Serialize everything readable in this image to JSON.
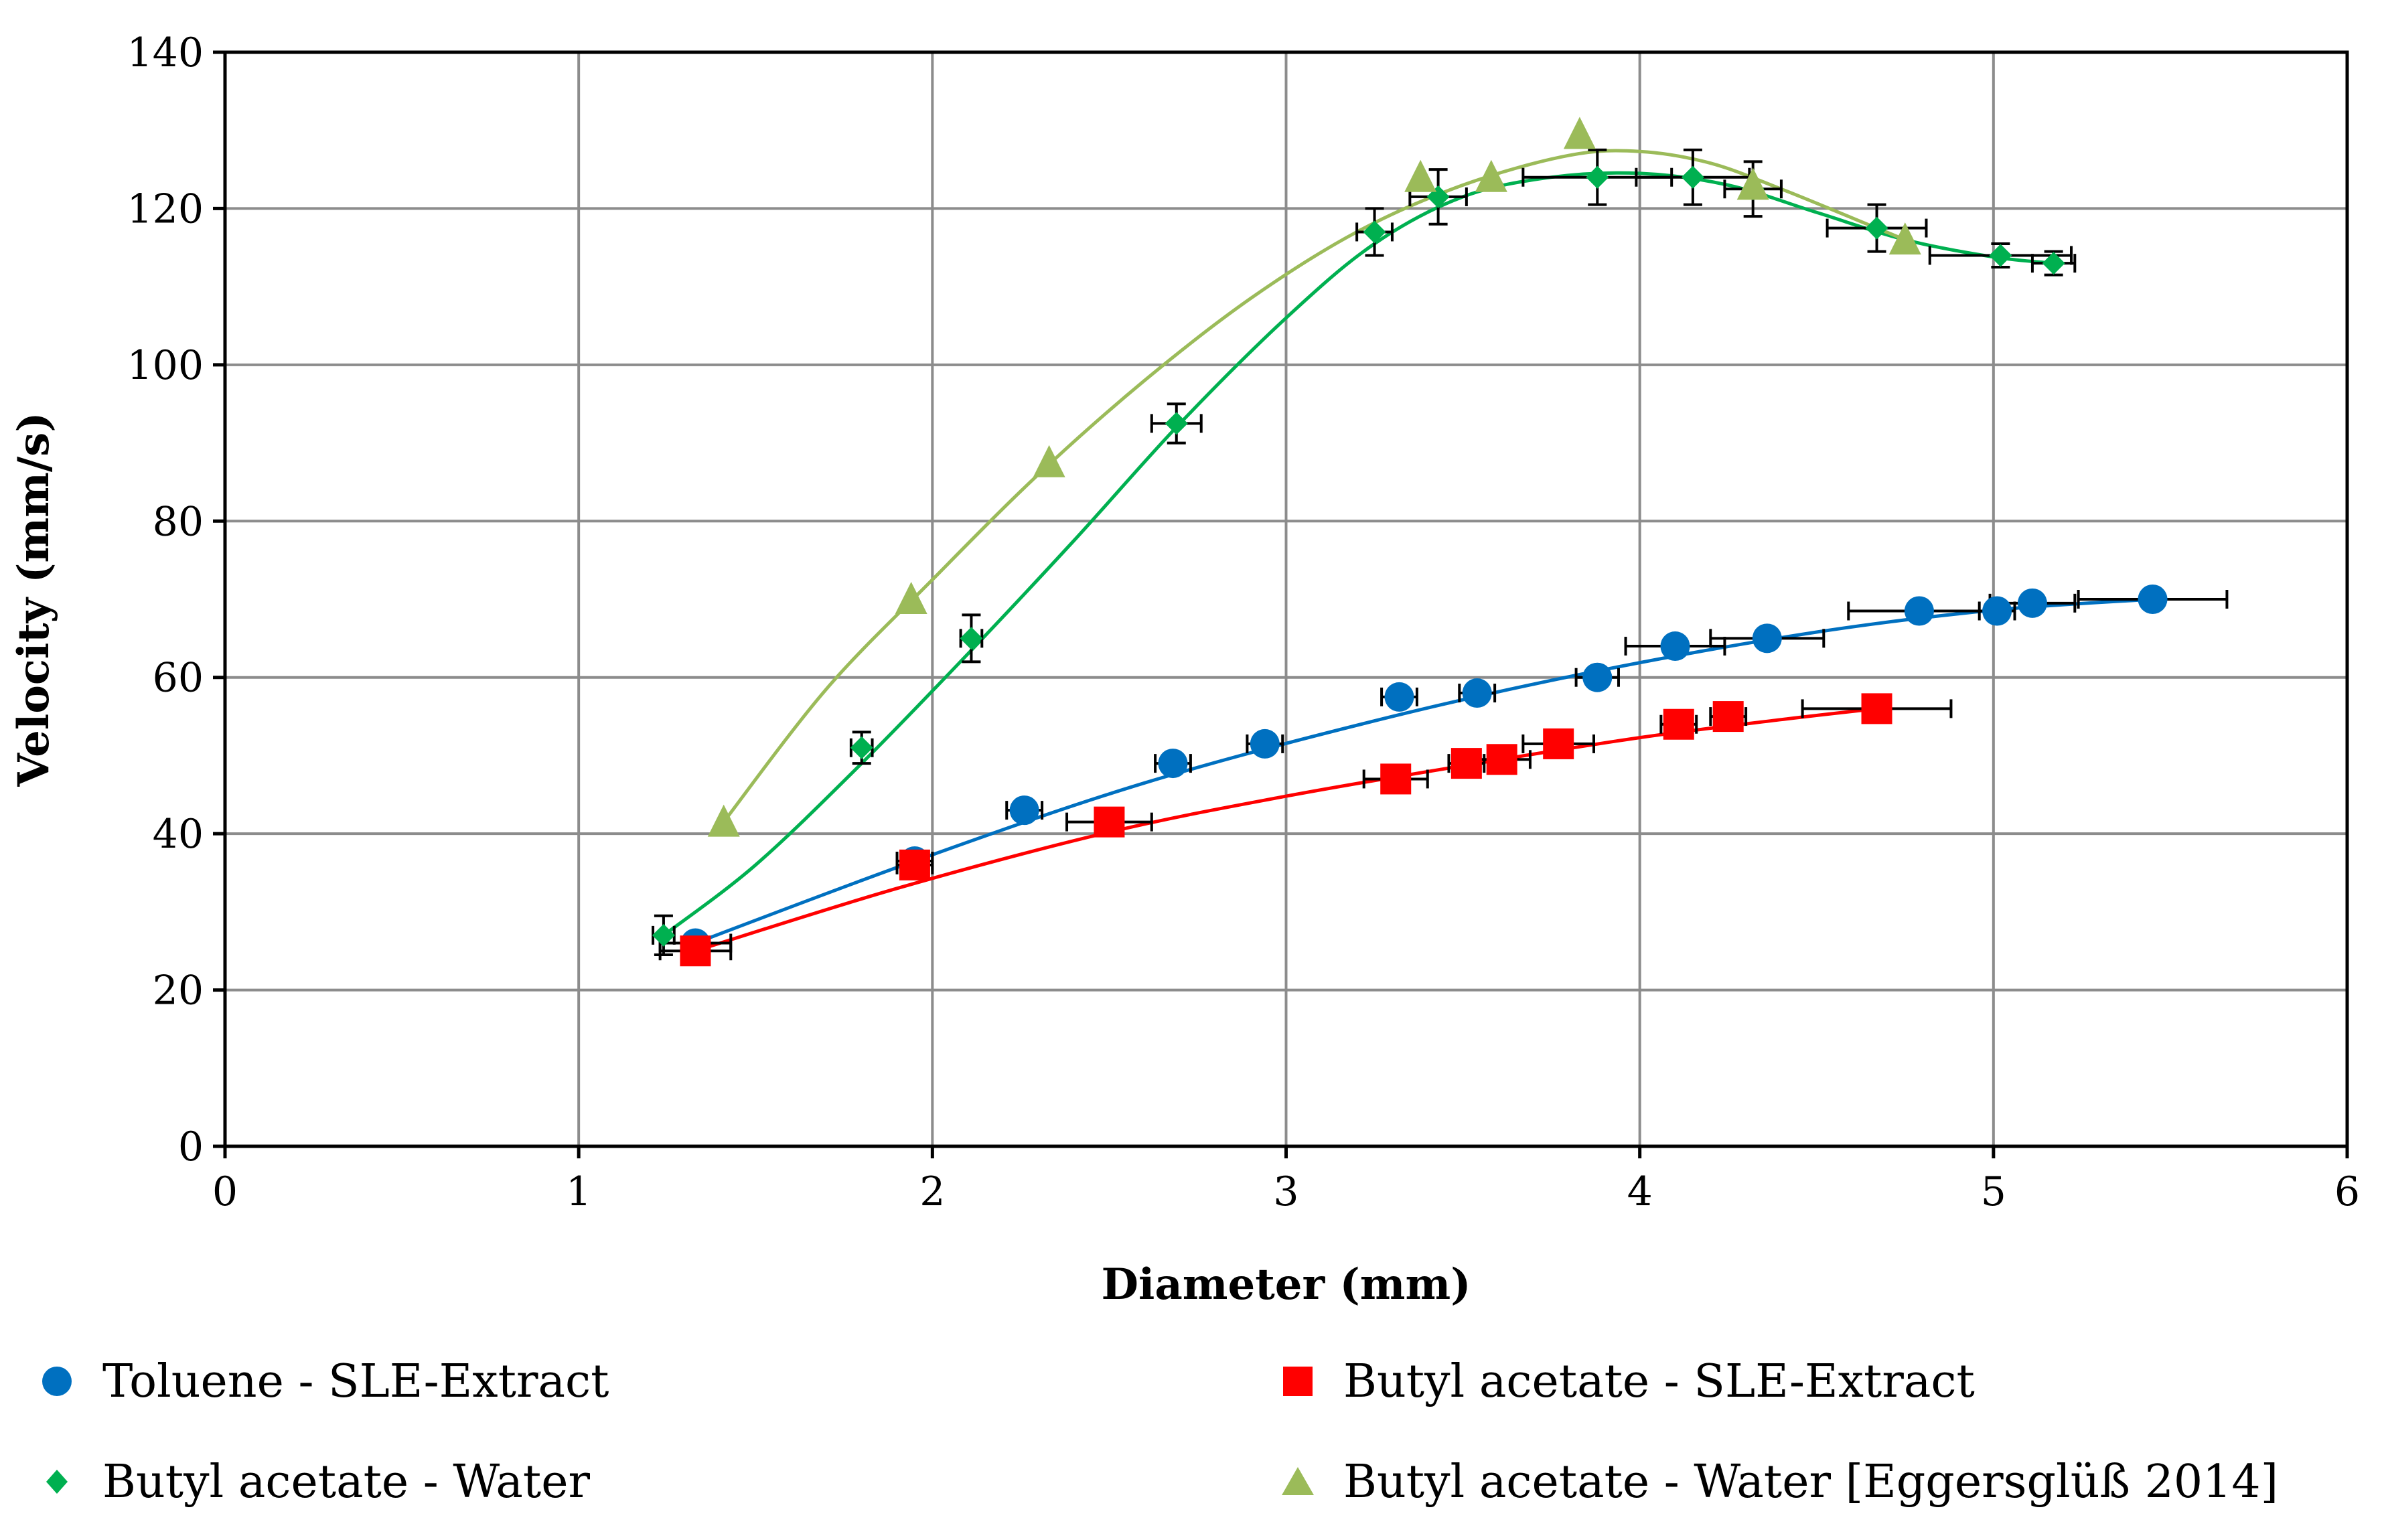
{
  "chart_data": {
    "type": "scatter",
    "xlabel": "Diameter (mm)",
    "ylabel": "Velocity (mm/s)",
    "xlim": [
      0,
      6
    ],
    "ylim": [
      0,
      140
    ],
    "x_ticks": [
      0,
      1,
      2,
      3,
      4,
      5,
      6
    ],
    "y_ticks": [
      0,
      20,
      40,
      60,
      80,
      100,
      120,
      140
    ],
    "x_tick_labels": [
      "0",
      "1",
      "2",
      "3",
      "4",
      "5",
      "6"
    ],
    "y_tick_labels": [
      "0",
      "20",
      "40",
      "60",
      "80",
      "100",
      "120",
      "140"
    ],
    "grid": true,
    "legend_position": "bottom",
    "series": [
      {
        "name": "Toluene - SLE-Extract",
        "marker": "circle",
        "color": "#0070C0",
        "points": [
          {
            "x": 1.33,
            "y": 26.0,
            "xerr": 0.1
          },
          {
            "x": 1.95,
            "y": 36.5,
            "xerr": 0.05
          },
          {
            "x": 2.26,
            "y": 43.0,
            "xerr": 0.05
          },
          {
            "x": 2.68,
            "y": 49.0,
            "xerr": 0.05
          },
          {
            "x": 2.94,
            "y": 51.5,
            "xerr": 0.05
          },
          {
            "x": 3.32,
            "y": 57.5,
            "xerr": 0.05
          },
          {
            "x": 3.54,
            "y": 58.0,
            "xerr": 0.05
          },
          {
            "x": 3.88,
            "y": 60.0,
            "xerr": 0.06
          },
          {
            "x": 4.1,
            "y": 64.0,
            "xerr": 0.14
          },
          {
            "x": 4.36,
            "y": 65.0,
            "xerr": 0.16
          },
          {
            "x": 4.79,
            "y": 68.5,
            "xerr": 0.2
          },
          {
            "x": 5.01,
            "y": 68.5,
            "xerr": 0.05
          },
          {
            "x": 5.11,
            "y": 69.5,
            "xerr": 0.12
          },
          {
            "x": 5.45,
            "y": 70.0,
            "xerr": 0.21
          }
        ],
        "fit": [
          [
            1.33,
            26.0
          ],
          [
            1.95,
            36.5
          ],
          [
            2.6,
            46.5
          ],
          [
            3.3,
            55.0
          ],
          [
            3.9,
            61.0
          ],
          [
            4.5,
            65.8
          ],
          [
            5.0,
            68.6
          ],
          [
            5.45,
            70.0
          ]
        ]
      },
      {
        "name": "Butyl acetate - SLE-Extract",
        "marker": "square",
        "color": "#FF0000",
        "points": [
          {
            "x": 1.33,
            "y": 25.0,
            "xerr": 0.1
          },
          {
            "x": 1.95,
            "y": 36.0,
            "xerr": 0.05
          },
          {
            "x": 2.5,
            "y": 41.5,
            "xerr": 0.12
          },
          {
            "x": 3.31,
            "y": 47.0,
            "xerr": 0.09
          },
          {
            "x": 3.51,
            "y": 49.0,
            "xerr": 0.05
          },
          {
            "x": 3.61,
            "y": 49.5,
            "xerr": 0.08
          },
          {
            "x": 3.77,
            "y": 51.5,
            "xerr": 0.1
          },
          {
            "x": 4.11,
            "y": 54.0,
            "xerr": 0.05
          },
          {
            "x": 4.25,
            "y": 55.0,
            "xerr": 0.05
          },
          {
            "x": 4.67,
            "y": 56.0,
            "xerr": 0.21
          }
        ],
        "fit": [
          [
            1.33,
            25.0
          ],
          [
            1.9,
            33.0
          ],
          [
            2.5,
            40.2
          ],
          [
            3.0,
            44.8
          ],
          [
            3.5,
            48.7
          ],
          [
            4.0,
            52.3
          ],
          [
            4.4,
            54.6
          ],
          [
            4.67,
            56.0
          ]
        ]
      },
      {
        "name": "Butyl acetate - Water",
        "marker": "diamond",
        "color": "#00B050",
        "points": [
          {
            "x": 1.24,
            "y": 27.0,
            "xerr": 0.03,
            "yerr": 2.5
          },
          {
            "x": 1.8,
            "y": 51.0,
            "xerr": 0.03,
            "yerr": 2.0
          },
          {
            "x": 2.11,
            "y": 65.0,
            "xerr": 0.03,
            "yerr": 3.0
          },
          {
            "x": 2.69,
            "y": 92.5,
            "xerr": 0.07,
            "yerr": 2.5
          },
          {
            "x": 3.25,
            "y": 117.0,
            "xerr": 0.05,
            "yerr": 3.0
          },
          {
            "x": 3.43,
            "y": 121.5,
            "xerr": 0.08,
            "yerr": 3.5
          },
          {
            "x": 3.88,
            "y": 124.0,
            "xerr": 0.21,
            "yerr": 3.5
          },
          {
            "x": 4.15,
            "y": 124.0,
            "xerr": 0.16,
            "yerr": 3.5
          },
          {
            "x": 4.32,
            "y": 122.5,
            "xerr": 0.08,
            "yerr": 3.5
          },
          {
            "x": 4.67,
            "y": 117.5,
            "xerr": 0.14,
            "yerr": 3.0
          },
          {
            "x": 5.02,
            "y": 114.0,
            "xerr": 0.2,
            "yerr": 1.5
          },
          {
            "x": 5.17,
            "y": 113.0,
            "xerr": 0.06,
            "yerr": 1.5
          }
        ],
        "fit": [
          [
            1.24,
            27.0
          ],
          [
            1.5,
            36.0
          ],
          [
            1.8,
            49.0
          ],
          [
            2.1,
            63.0
          ],
          [
            2.4,
            77.5
          ],
          [
            2.7,
            92.5
          ],
          [
            3.0,
            106.0
          ],
          [
            3.25,
            115.5
          ],
          [
            3.5,
            121.5
          ],
          [
            3.75,
            124.0
          ],
          [
            4.0,
            124.5
          ],
          [
            4.25,
            123.0
          ],
          [
            4.5,
            119.5
          ],
          [
            4.75,
            116.0
          ],
          [
            5.0,
            113.8
          ],
          [
            5.17,
            113.0
          ]
        ]
      },
      {
        "name": "Butyl acetate - Water [Eggersglüß 2014]",
        "marker": "triangle",
        "color": "#9BBB59",
        "points": [
          {
            "x": 1.41,
            "y": 41.5
          },
          {
            "x": 1.94,
            "y": 70.0
          },
          {
            "x": 2.33,
            "y": 87.5
          },
          {
            "x": 3.38,
            "y": 124.0
          },
          {
            "x": 3.58,
            "y": 124.0
          },
          {
            "x": 3.83,
            "y": 129.5
          },
          {
            "x": 4.32,
            "y": 123.0
          },
          {
            "x": 4.75,
            "y": 116.0
          }
        ],
        "fit": [
          [
            1.41,
            41.5
          ],
          [
            1.7,
            58.5
          ],
          [
            2.0,
            72.5
          ],
          [
            2.3,
            86.0
          ],
          [
            2.6,
            98.0
          ],
          [
            2.9,
            108.5
          ],
          [
            3.2,
            117.0
          ],
          [
            3.5,
            123.0
          ],
          [
            3.8,
            126.8
          ],
          [
            4.0,
            127.3
          ],
          [
            4.2,
            125.8
          ],
          [
            4.4,
            122.5
          ],
          [
            4.6,
            118.8
          ],
          [
            4.75,
            116.0
          ]
        ]
      }
    ]
  }
}
